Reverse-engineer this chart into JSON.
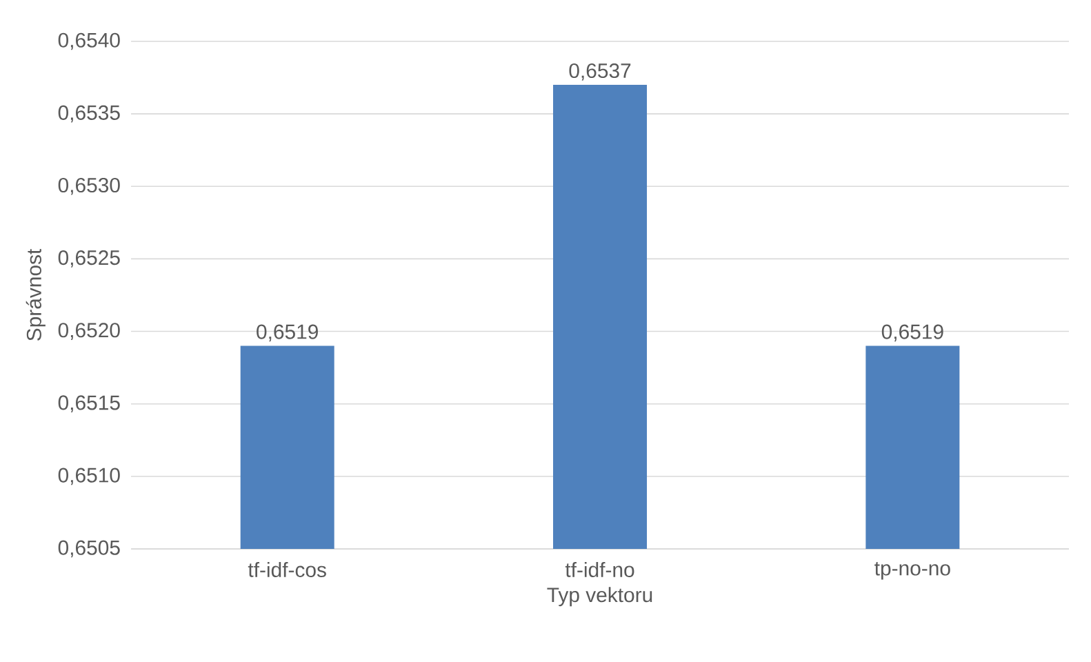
{
  "chart_data": {
    "type": "bar",
    "xlabel": "Typ vektoru",
    "ylabel": "Správnost",
    "categories": [
      "tf-idf-cos",
      "tf-idf-no",
      "tp-no-no"
    ],
    "values": [
      0.6519,
      0.6537,
      0.6519
    ],
    "value_labels": [
      "0,6519",
      "0,6537",
      "0,6519"
    ],
    "color": "#4f81bd",
    "ylim": [
      0.6505,
      0.654
    ],
    "yticks": [
      {
        "value": 0.6505,
        "label": "0,6505"
      },
      {
        "value": 0.651,
        "label": "0,6510"
      },
      {
        "value": 0.6515,
        "label": "0,6515"
      },
      {
        "value": 0.652,
        "label": "0,6520"
      },
      {
        "value": 0.6525,
        "label": "0,6525"
      },
      {
        "value": 0.653,
        "label": "0,6530"
      },
      {
        "value": 0.6535,
        "label": "0,6535"
      },
      {
        "value": 0.654,
        "label": "0,6540"
      }
    ],
    "grid": "y"
  }
}
